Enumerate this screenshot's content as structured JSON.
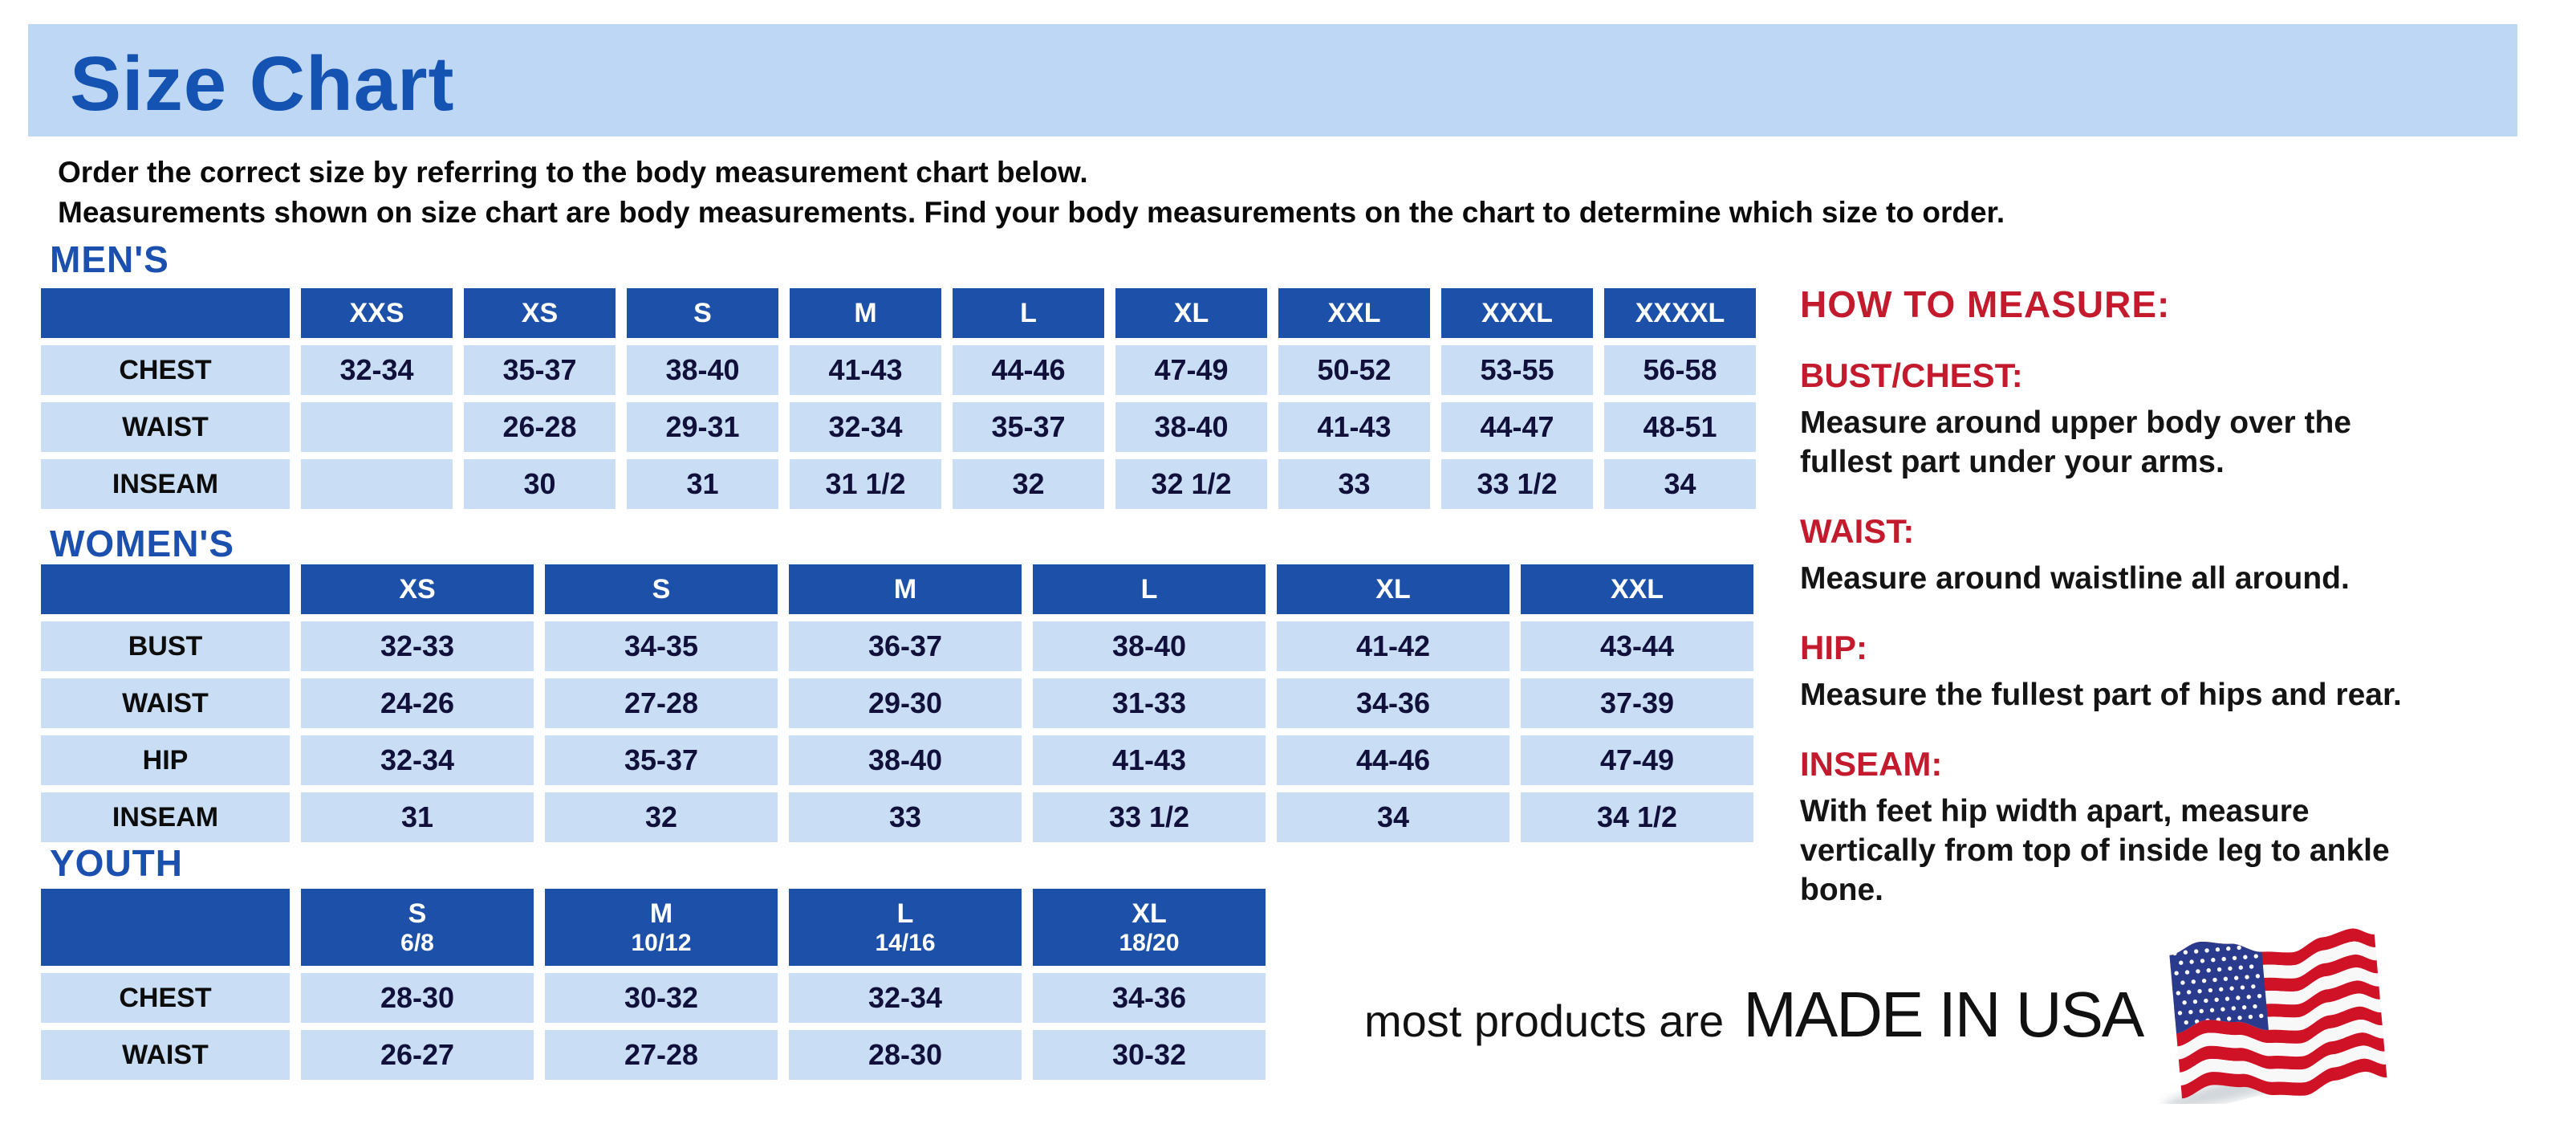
{
  "page": {
    "title": "Size Chart",
    "intro": [
      "Order the correct size by referring to the body measurement chart below.",
      "Measurements shown on size chart are body measurements.  Find your body measurements on the chart to determine which size to order."
    ]
  },
  "tables": {
    "mens": {
      "section_label": "MEN'S",
      "columns": [
        {
          "label": "XXS"
        },
        {
          "label": "XS"
        },
        {
          "label": "S"
        },
        {
          "label": "M"
        },
        {
          "label": "L"
        },
        {
          "label": "XL"
        },
        {
          "label": "XXL"
        },
        {
          "label": "XXXL"
        },
        {
          "label": "XXXXL"
        }
      ],
      "rows": [
        {
          "label": "CHEST",
          "values": [
            "32-34",
            "35-37",
            "38-40",
            "41-43",
            "44-46",
            "47-49",
            "50-52",
            "53-55",
            "56-58"
          ]
        },
        {
          "label": "WAIST",
          "values": [
            "",
            "26-28",
            "29-31",
            "32-34",
            "35-37",
            "38-40",
            "41-43",
            "44-47",
            "48-51"
          ]
        },
        {
          "label": "INSEAM",
          "values": [
            "",
            "30",
            "31",
            "31 1/2",
            "32",
            "32 1/2",
            "33",
            "33 1/2",
            "34"
          ]
        }
      ]
    },
    "womens": {
      "section_label": "WOMEN'S",
      "columns": [
        {
          "label": "XS"
        },
        {
          "label": "S"
        },
        {
          "label": "M"
        },
        {
          "label": "L"
        },
        {
          "label": "XL"
        },
        {
          "label": "XXL"
        }
      ],
      "rows": [
        {
          "label": "BUST",
          "values": [
            "32-33",
            "34-35",
            "36-37",
            "38-40",
            "41-42",
            "43-44"
          ]
        },
        {
          "label": "WAIST",
          "values": [
            "24-26",
            "27-28",
            "29-30",
            "31-33",
            "34-36",
            "37-39"
          ]
        },
        {
          "label": "HIP",
          "values": [
            "32-34",
            "35-37",
            "38-40",
            "41-43",
            "44-46",
            "47-49"
          ]
        },
        {
          "label": "INSEAM",
          "values": [
            "31",
            "32",
            "33",
            "33 1/2",
            "34",
            "34 1/2"
          ]
        }
      ]
    },
    "youth": {
      "section_label": "YOUTH",
      "columns": [
        {
          "label": "S",
          "sub": "6/8"
        },
        {
          "label": "M",
          "sub": "10/12"
        },
        {
          "label": "L",
          "sub": "14/16"
        },
        {
          "label": "XL",
          "sub": "18/20"
        }
      ],
      "rows": [
        {
          "label": "CHEST",
          "values": [
            "28-30",
            "30-32",
            "32-34",
            "34-36"
          ]
        },
        {
          "label": "WAIST",
          "values": [
            "26-27",
            "27-28",
            "28-30",
            "30-32"
          ]
        }
      ]
    }
  },
  "how_to_measure": {
    "heading": "HOW TO MEASURE:",
    "items": [
      {
        "label": "BUST/CHEST:",
        "text": "Measure around upper body over the fullest part under your arms."
      },
      {
        "label": "WAIST:",
        "text": "Measure around waistline all around."
      },
      {
        "label": "HIP:",
        "text": "Measure the fullest part of hips and rear."
      },
      {
        "label": "INSEAM:",
        "text": "With feet hip width apart, measure vertically from top of inside leg to ankle bone."
      }
    ]
  },
  "footer": {
    "prefix": "most products are",
    "made_in": "MADE IN USA",
    "flag_icon": "us-flag-icon"
  },
  "colors": {
    "banner_bg": "#bdd7f5",
    "title_blue": "#1553b3",
    "section_blue": "#1c50ae",
    "table_header_bg": "#1d50a8",
    "table_cell_bg": "#c9def4",
    "cell_text": "#10103a",
    "accent_red": "#c31b2d",
    "flag_red": "#cf1225",
    "flag_blue": "#2a3b8e"
  }
}
